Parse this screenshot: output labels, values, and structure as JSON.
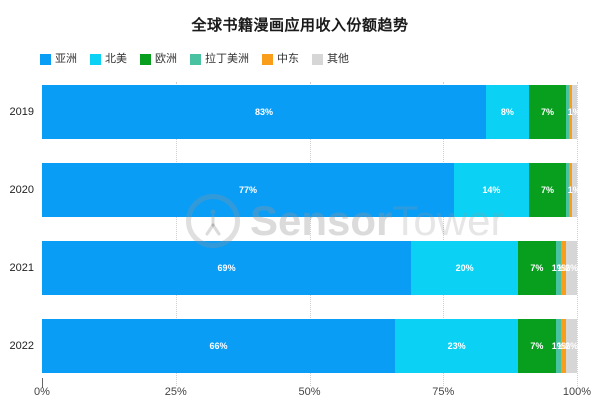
{
  "title": "全球书籍漫画应用收入份额趋势",
  "watermark": {
    "part1": "Sensor",
    "part2": "Tower"
  },
  "chart_data": {
    "type": "bar",
    "orientation": "horizontal-stacked",
    "title": "全球书籍漫画应用收入份额趋势",
    "categories": [
      "2019",
      "2020",
      "2021",
      "2022"
    ],
    "series": [
      {
        "name": "亚洲",
        "color": "#0A9DF6",
        "values": [
          83,
          77,
          69,
          66
        ]
      },
      {
        "name": "北美",
        "color": "#0BD2F5",
        "values": [
          8,
          14,
          20,
          23
        ]
      },
      {
        "name": "欧洲",
        "color": "#089F1F",
        "values": [
          7,
          7,
          7,
          7
        ]
      },
      {
        "name": "拉丁美洲",
        "color": "#49C2A1",
        "values": [
          0.5,
          0.5,
          1,
          1
        ]
      },
      {
        "name": "中东",
        "color": "#F89E1B",
        "values": [
          0.5,
          0.5,
          1,
          1
        ]
      },
      {
        "name": "其他",
        "color": "#D6D6D6",
        "values": [
          1,
          1,
          2,
          2
        ]
      }
    ],
    "x_ticks": [
      "0%",
      "25%",
      "50%",
      "75%",
      "100%"
    ],
    "x_tick_values": [
      0,
      25,
      50,
      75,
      100
    ],
    "xlim": [
      0,
      100
    ],
    "value_label_format": "integer-percent",
    "value_label_min": 1,
    "legend_position": "top-left",
    "grid": "vertical-dotted",
    "watermark": "SensorTower"
  }
}
